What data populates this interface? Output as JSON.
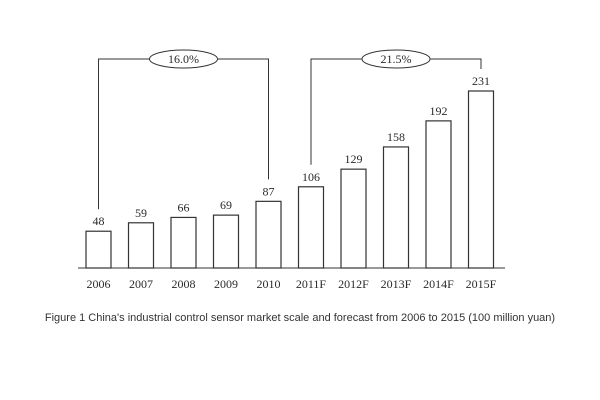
{
  "chart_data": {
    "type": "bar",
    "categories": [
      "2006",
      "2007",
      "2008",
      "2009",
      "2010",
      "2011F",
      "2012F",
      "2013F",
      "2014F",
      "2015F"
    ],
    "values": [
      48,
      59,
      66,
      69,
      87,
      106,
      129,
      158,
      192,
      231
    ],
    "data_labels": [
      "48",
      "59",
      "66",
      "69",
      "87",
      "106",
      "129",
      "158",
      "192",
      "231"
    ],
    "title": "",
    "xlabel": "",
    "ylabel": "",
    "ylim": [
      0,
      231
    ],
    "grid": false,
    "legend": "none",
    "annotations": [
      {
        "text": "16.0%",
        "from_category": "2006",
        "to_category": "2010"
      },
      {
        "text": "21.5%",
        "from_category": "2011F",
        "to_category": "2015F"
      }
    ]
  },
  "caption": "Figure 1 China's industrial control sensor market scale and forecast from 2006 to 2015 (100 million yuan)",
  "colors": {
    "bar_fill": "#ffffff",
    "bar_stroke": "#333333",
    "text": "#2a2a2a"
  }
}
